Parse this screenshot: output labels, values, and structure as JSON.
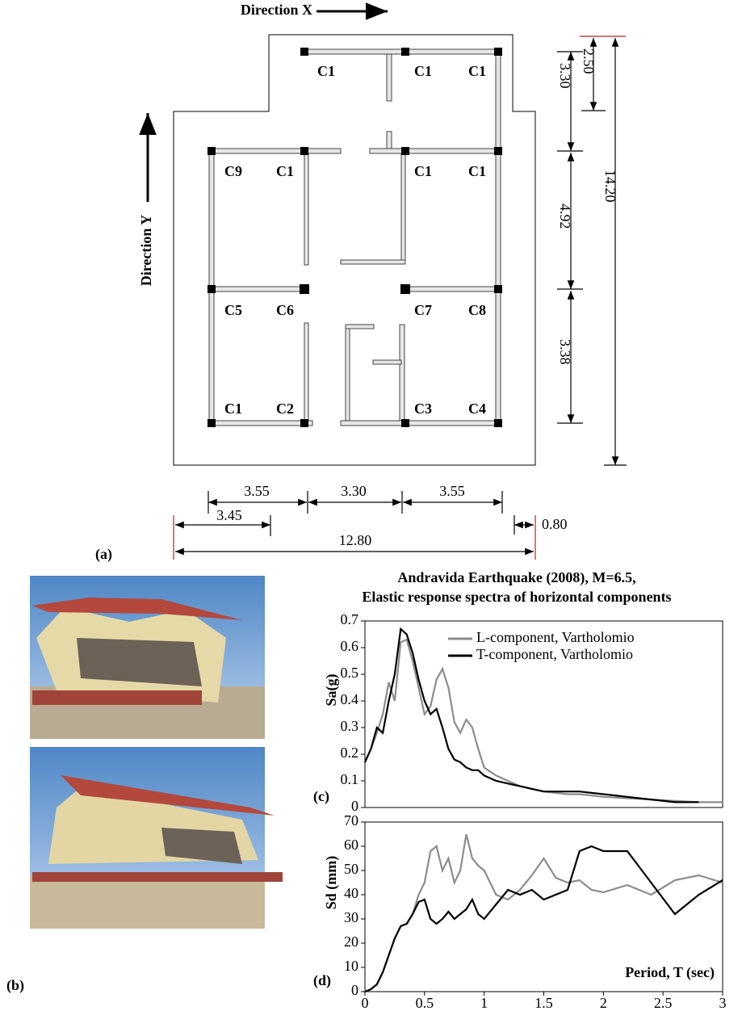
{
  "plan": {
    "direction_x": "Direction X",
    "direction_y": "Direction Y",
    "label": "(a)",
    "columns": [
      "C1",
      "C1",
      "C1",
      "C9",
      "C1",
      "C1",
      "C1",
      "C5",
      "C6",
      "C7",
      "C8",
      "C1",
      "C2",
      "C3",
      "C4"
    ],
    "dimensions": [
      "3.30",
      "2.50",
      "4.92",
      "3.38",
      "14.20",
      "3.55",
      "3.30",
      "3.55",
      "3.45",
      "0.80",
      "12.80"
    ]
  },
  "photos": {
    "label": "(b)"
  },
  "chart_data": [
    {
      "type": "line",
      "title": "Andravida Earthquake (2008), M=6.5,",
      "subtitle": "Elastic response spectra of horizontal components",
      "panel": "(c)",
      "y_label": "Sa(g)",
      "legend": "upper right",
      "x": [
        0,
        0.05,
        0.1,
        0.15,
        0.2,
        0.25,
        0.3,
        0.35,
        0.4,
        0.45,
        0.5,
        0.55,
        0.6,
        0.65,
        0.7,
        0.75,
        0.8,
        0.85,
        0.9,
        0.95,
        1.0,
        1.1,
        1.2,
        1.3,
        1.4,
        1.5,
        1.6,
        1.7,
        1.8,
        1.9,
        2.0,
        2.2,
        2.4,
        2.6,
        2.8,
        3.0
      ],
      "xlim": [
        0,
        3
      ],
      "ylim": [
        0,
        0.7
      ],
      "yticks": [
        0,
        0.1,
        0.2,
        0.3,
        0.4,
        0.5,
        0.6,
        0.7
      ],
      "series": [
        {
          "name": "L-component, Vartholomio",
          "color": "#8c8c8c",
          "values": [
            0.17,
            0.22,
            0.28,
            0.35,
            0.47,
            0.4,
            0.62,
            0.63,
            0.55,
            0.45,
            0.35,
            0.38,
            0.48,
            0.52,
            0.45,
            0.32,
            0.28,
            0.33,
            0.3,
            0.22,
            0.15,
            0.12,
            0.1,
            0.08,
            0.07,
            0.06,
            0.055,
            0.05,
            0.05,
            0.045,
            0.04,
            0.035,
            0.03,
            0.025,
            0.02,
            0.02
          ]
        },
        {
          "name": "T-component, Vartholomio",
          "color": "#000000",
          "values": [
            0.17,
            0.22,
            0.3,
            0.28,
            0.4,
            0.5,
            0.67,
            0.65,
            0.58,
            0.48,
            0.4,
            0.35,
            0.37,
            0.3,
            0.22,
            0.18,
            0.17,
            0.15,
            0.14,
            0.14,
            0.12,
            0.1,
            0.09,
            0.08,
            0.07,
            0.06,
            0.06,
            0.06,
            0.06,
            0.055,
            0.05,
            0.04,
            0.03,
            0.02,
            0.02,
            null
          ]
        }
      ]
    },
    {
      "type": "line",
      "panel": "(d)",
      "y_label": "Sd (mm)",
      "x_label": "Period, T (sec)",
      "x": [
        0,
        0.05,
        0.1,
        0.15,
        0.2,
        0.25,
        0.3,
        0.35,
        0.4,
        0.45,
        0.5,
        0.55,
        0.6,
        0.65,
        0.7,
        0.75,
        0.8,
        0.85,
        0.9,
        0.95,
        1.0,
        1.1,
        1.2,
        1.3,
        1.4,
        1.5,
        1.6,
        1.7,
        1.8,
        1.9,
        2.0,
        2.2,
        2.4,
        2.6,
        2.8,
        3.0
      ],
      "xlim": [
        0,
        3
      ],
      "xticks": [
        0,
        0.5,
        1,
        1.5,
        2,
        2.5,
        3
      ],
      "ylim": [
        0,
        70
      ],
      "yticks": [
        0,
        10,
        20,
        30,
        40,
        50,
        60,
        70
      ],
      "series": [
        {
          "name": "L-component, Vartholomio",
          "color": "#8c8c8c",
          "values": [
            0,
            1,
            3,
            8,
            15,
            22,
            27,
            28,
            32,
            40,
            45,
            58,
            60,
            50,
            55,
            45,
            50,
            65,
            55,
            52,
            50,
            40,
            38,
            42,
            48,
            55,
            47,
            45,
            46,
            42,
            41,
            44,
            40,
            46,
            48,
            45
          ]
        },
        {
          "name": "T-component, Vartholomio",
          "color": "#000000",
          "values": [
            0,
            1,
            3,
            8,
            15,
            22,
            27,
            28,
            32,
            37,
            38,
            30,
            28,
            30,
            33,
            30,
            32,
            34,
            38,
            32,
            30,
            36,
            42,
            40,
            42,
            38,
            40,
            42,
            58,
            60,
            58,
            58,
            45,
            32,
            40,
            46
          ]
        }
      ]
    }
  ]
}
